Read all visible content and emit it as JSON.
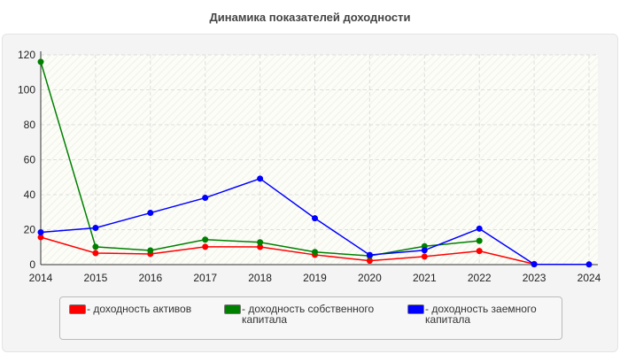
{
  "chart_data": {
    "type": "line",
    "title": "Динамика показателей доходности",
    "x": [
      "2014",
      "2015",
      "2016",
      "2017",
      "2018",
      "2019",
      "2020",
      "2021",
      "2022",
      "2023",
      "2024"
    ],
    "ylim": [
      0,
      120
    ],
    "yticks": [
      0,
      20,
      40,
      60,
      80,
      100,
      120
    ],
    "grid": true,
    "legend_placement": "bottom",
    "series": [
      {
        "name": "- доходность активов",
        "color": "#ff0000",
        "values": [
          15.7,
          6.6,
          6.1,
          10.2,
          10.1,
          5.6,
          2.2,
          4.6,
          7.8,
          0.3,
          null
        ]
      },
      {
        "name": "- доходность собственного капитала",
        "color": "#008000",
        "values": [
          116,
          10.2,
          8.1,
          14.3,
          12.8,
          7.2,
          5,
          10.5,
          13.6,
          null,
          null
        ]
      },
      {
        "name": "- доходность заемного капитала",
        "color": "#0000ff",
        "values": [
          18.5,
          21,
          29.6,
          38.2,
          49.2,
          26.5,
          5.5,
          8.2,
          20.6,
          0.2,
          0.1
        ]
      }
    ]
  }
}
